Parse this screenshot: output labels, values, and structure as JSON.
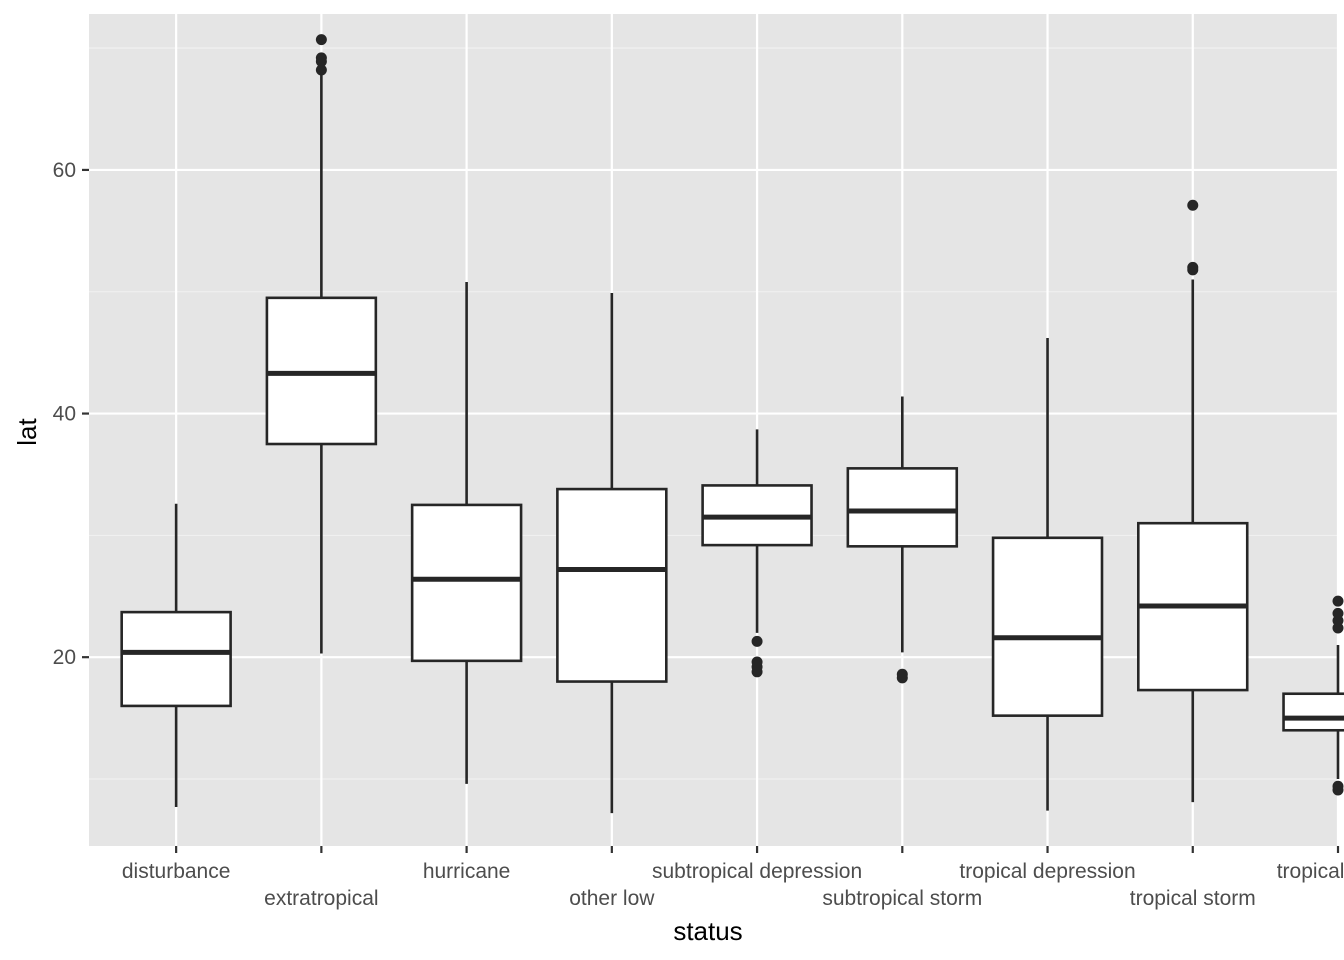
{
  "chart_data": {
    "type": "boxplot",
    "xlabel": "status",
    "ylabel": "lat",
    "ylim": [
      4.5,
      72.8
    ],
    "y_ticks": [
      20,
      40,
      60
    ],
    "y_tick_labels": [
      "20",
      "40",
      "60"
    ],
    "grid": true,
    "categories": [
      "disturbance",
      "extratropical",
      "hurricane",
      "other low",
      "subtropical depression",
      "subtropical storm",
      "tropical depression",
      "tropical storm",
      "tropical wave"
    ],
    "boxes": [
      {
        "category": "disturbance",
        "whisker_low": 7.7,
        "q1": 16.0,
        "median": 20.4,
        "q3": 23.7,
        "whisker_high": 32.6,
        "outliers": []
      },
      {
        "category": "extratropical",
        "whisker_low": 20.3,
        "q1": 37.5,
        "median": 43.3,
        "q3": 49.5,
        "whisker_high": 67.9,
        "outliers": [
          68.2,
          68.9,
          69.2,
          70.7
        ]
      },
      {
        "category": "hurricane",
        "whisker_low": 9.6,
        "q1": 19.7,
        "median": 26.4,
        "q3": 32.5,
        "whisker_high": 50.8,
        "outliers": []
      },
      {
        "category": "other low",
        "whisker_low": 7.2,
        "q1": 18.0,
        "median": 27.2,
        "q3": 33.8,
        "whisker_high": 49.9,
        "outliers": []
      },
      {
        "category": "subtropical depression",
        "whisker_low": 22.0,
        "q1": 29.2,
        "median": 31.5,
        "q3": 34.1,
        "whisker_high": 38.7,
        "outliers": [
          18.8,
          19.2,
          19.6,
          21.3
        ]
      },
      {
        "category": "subtropical storm",
        "whisker_low": 20.4,
        "q1": 29.1,
        "median": 32.0,
        "q3": 35.5,
        "whisker_high": 41.4,
        "outliers": [
          18.3,
          18.6
        ]
      },
      {
        "category": "tropical depression",
        "whisker_low": 7.4,
        "q1": 15.2,
        "median": 21.6,
        "q3": 29.8,
        "whisker_high": 46.2,
        "outliers": []
      },
      {
        "category": "tropical storm",
        "whisker_low": 8.1,
        "q1": 17.3,
        "median": 24.2,
        "q3": 31.0,
        "whisker_high": 51.0,
        "outliers": [
          51.8,
          52.0,
          57.1
        ]
      },
      {
        "category": "tropical wave",
        "whisker_low": 10.0,
        "q1": 14.0,
        "median": 15.0,
        "q3": 17.0,
        "whisker_high": 21.0,
        "outliers": [
          9.1,
          9.4,
          22.4,
          23.0,
          23.6,
          24.6
        ]
      }
    ]
  },
  "colors": {
    "panel_background": "#e5e5e5",
    "grid_major": "#ffffff",
    "grid_minor": "#f2f2f2",
    "box_fill": "#ffffff",
    "box_line": "#262626",
    "point": "#262626",
    "tick_text": "#4d4d4d"
  }
}
